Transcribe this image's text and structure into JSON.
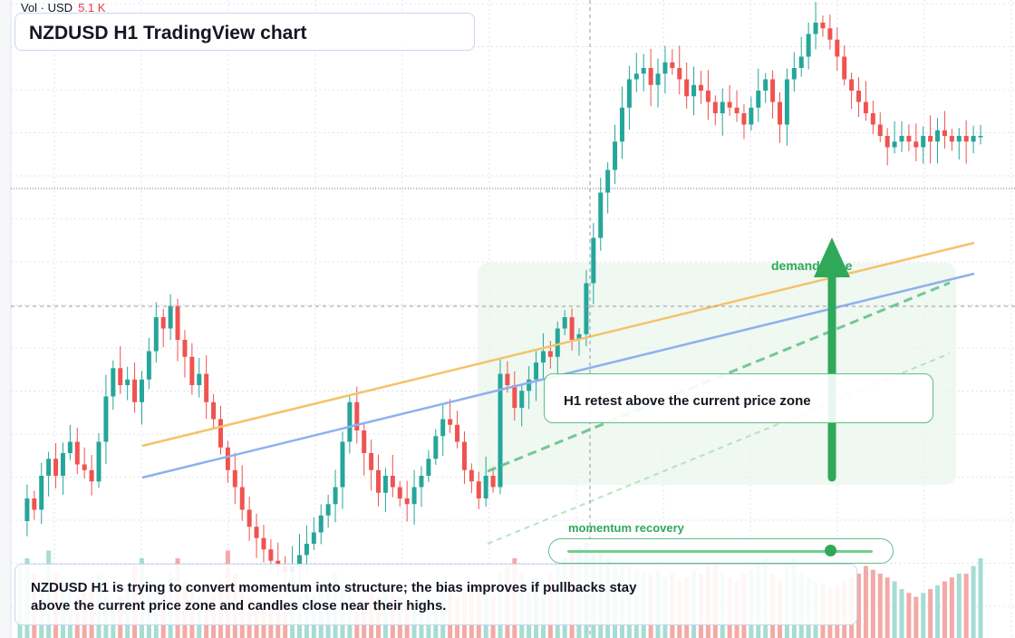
{
  "header": {
    "volume_label": "Vol · USD",
    "volume_value": "5.1 K"
  },
  "title": "NZDUSD H1 TradingView chart",
  "annotations": {
    "retest_label": "H1 retest above the current price zone",
    "zone_label": "demand zone",
    "momentum_label": "momentum recovery",
    "momentum_level": 0.86
  },
  "summary": "NZDUSD H1 is trying to convert momentum into structure; the bias improves if pullbacks stay above the current price zone and candles close near their highs.",
  "colors": {
    "up": "#26a69a",
    "down": "#ef5350",
    "accent_green": "#2fa85a",
    "trend_orange": "#f5c26b",
    "trend_blue": "#8fb0ee",
    "grid": "#e0e3eb"
  },
  "chart_data": {
    "type": "candlestick",
    "series_trend": [
      0.12,
      0.16,
      0.14,
      0.2,
      0.23,
      0.2,
      0.24,
      0.26,
      0.22,
      0.21,
      0.19,
      0.26,
      0.34,
      0.39,
      0.36,
      0.37,
      0.33,
      0.37,
      0.42,
      0.48,
      0.46,
      0.5,
      0.44,
      0.41,
      0.36,
      0.38,
      0.33,
      0.3,
      0.25,
      0.21,
      0.18,
      0.14,
      0.11,
      0.09,
      0.07,
      0.05,
      0.04,
      0.03,
      0.04,
      0.06,
      0.08,
      0.1,
      0.13,
      0.15,
      0.18,
      0.26,
      0.33,
      0.28,
      0.24,
      0.21,
      0.17,
      0.2,
      0.18,
      0.16,
      0.15,
      0.18,
      0.2,
      0.23,
      0.27,
      0.3,
      0.29,
      0.26,
      0.21,
      0.19,
      0.16,
      0.2,
      0.18,
      0.38,
      0.36,
      0.32,
      0.35,
      0.37,
      0.4,
      0.42,
      0.41,
      0.46,
      0.48,
      0.44,
      0.45,
      0.54,
      0.62,
      0.7,
      0.74,
      0.79,
      0.85,
      0.9,
      0.91,
      0.92,
      0.89,
      0.91,
      0.93,
      0.92,
      0.9,
      0.87,
      0.89,
      0.88,
      0.86,
      0.84,
      0.86,
      0.85,
      0.84,
      0.82,
      0.85,
      0.88,
      0.9,
      0.86,
      0.82,
      0.9,
      0.92,
      0.94,
      0.98,
      1.0,
      0.99,
      0.97,
      0.94,
      0.9,
      0.88,
      0.86,
      0.84,
      0.82,
      0.8,
      0.78,
      0.79,
      0.8,
      0.79,
      0.78,
      0.8,
      0.79,
      0.81,
      0.8,
      0.79,
      0.8,
      0.79,
      0.8,
      0.8
    ],
    "volume_trend": [
      0.7,
      0.8,
      0.6,
      0.5,
      0.9,
      0.6,
      0.5,
      0.4,
      0.3,
      0.35,
      0.4,
      0.6,
      0.3,
      0.2,
      0.3,
      0.4,
      0.7,
      0.8,
      0.5,
      0.3,
      0.4,
      0.6,
      0.8,
      0.5,
      0.4,
      0.3,
      0.2,
      0.35,
      0.5,
      0.9,
      0.6,
      0.4,
      0.3,
      0.2,
      0.15,
      0.1,
      0.15,
      0.1,
      0.2,
      0.3,
      0.35,
      0.3,
      0.4,
      0.5,
      0.6,
      0.4,
      0.3,
      0.2,
      0.25,
      0.35,
      0.3,
      0.4,
      0.35,
      0.3,
      0.25,
      0.2,
      0.25,
      0.3,
      0.2,
      0.5,
      0.4,
      0.3,
      0.35,
      0.4,
      0.45,
      0.35,
      0.3,
      0.6,
      0.7,
      0.8,
      0.6,
      0.5,
      0.55,
      0.5,
      0.6,
      0.7,
      0.8,
      0.9,
      0.95,
      1.0,
      0.85,
      0.9,
      0.8,
      0.7,
      0.75,
      0.7,
      0.65,
      0.6,
      0.6,
      0.65,
      0.55,
      0.6,
      0.5,
      0.55,
      0.65,
      0.6,
      0.7,
      0.75,
      0.6,
      0.55,
      0.5,
      0.6,
      0.65,
      0.7,
      0.8,
      0.6,
      0.5,
      0.7,
      0.8,
      0.6,
      0.55,
      0.5,
      0.45,
      0.4,
      0.45,
      0.5,
      0.55,
      0.6,
      0.7,
      0.65,
      0.6,
      0.55,
      0.5,
      0.4,
      0.35,
      0.3,
      0.35,
      0.4,
      0.45,
      0.5,
      0.55,
      0.6,
      0.6
    ]
  }
}
